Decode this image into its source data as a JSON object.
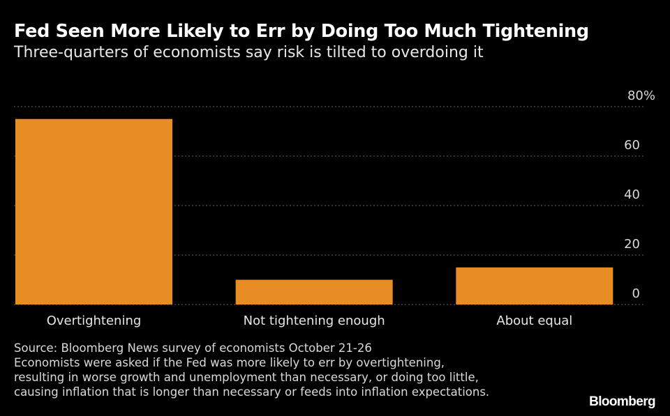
{
  "chart_data": {
    "type": "bar",
    "title": "Fed Seen More Likely to Err by Doing Too Much Tightening",
    "subtitle": "Three-quarters of economists say risk is tilted to overdoing it",
    "categories": [
      "Overtightening",
      "Not tightening enough",
      "About equal"
    ],
    "values": [
      75,
      10,
      15
    ],
    "ylim": [
      0,
      80
    ],
    "yticks": [
      0,
      20,
      40,
      60,
      80
    ],
    "ytick_labels": [
      "0",
      "20",
      "40",
      "60",
      "80%"
    ],
    "grid": true,
    "bar_color": "#E88C24",
    "grid_color": "#666666"
  },
  "footnote": {
    "lines": [
      "Source: Bloomberg News survey of economists October 21-26",
      "Economists were asked if the Fed was more likely to err by overtightening,",
      "resulting in worse growth and unemployment than necessary, or doing too little,",
      "causing inflation that is longer than necessary or feeds into inflation expectations."
    ]
  },
  "brand": "Bloomberg"
}
